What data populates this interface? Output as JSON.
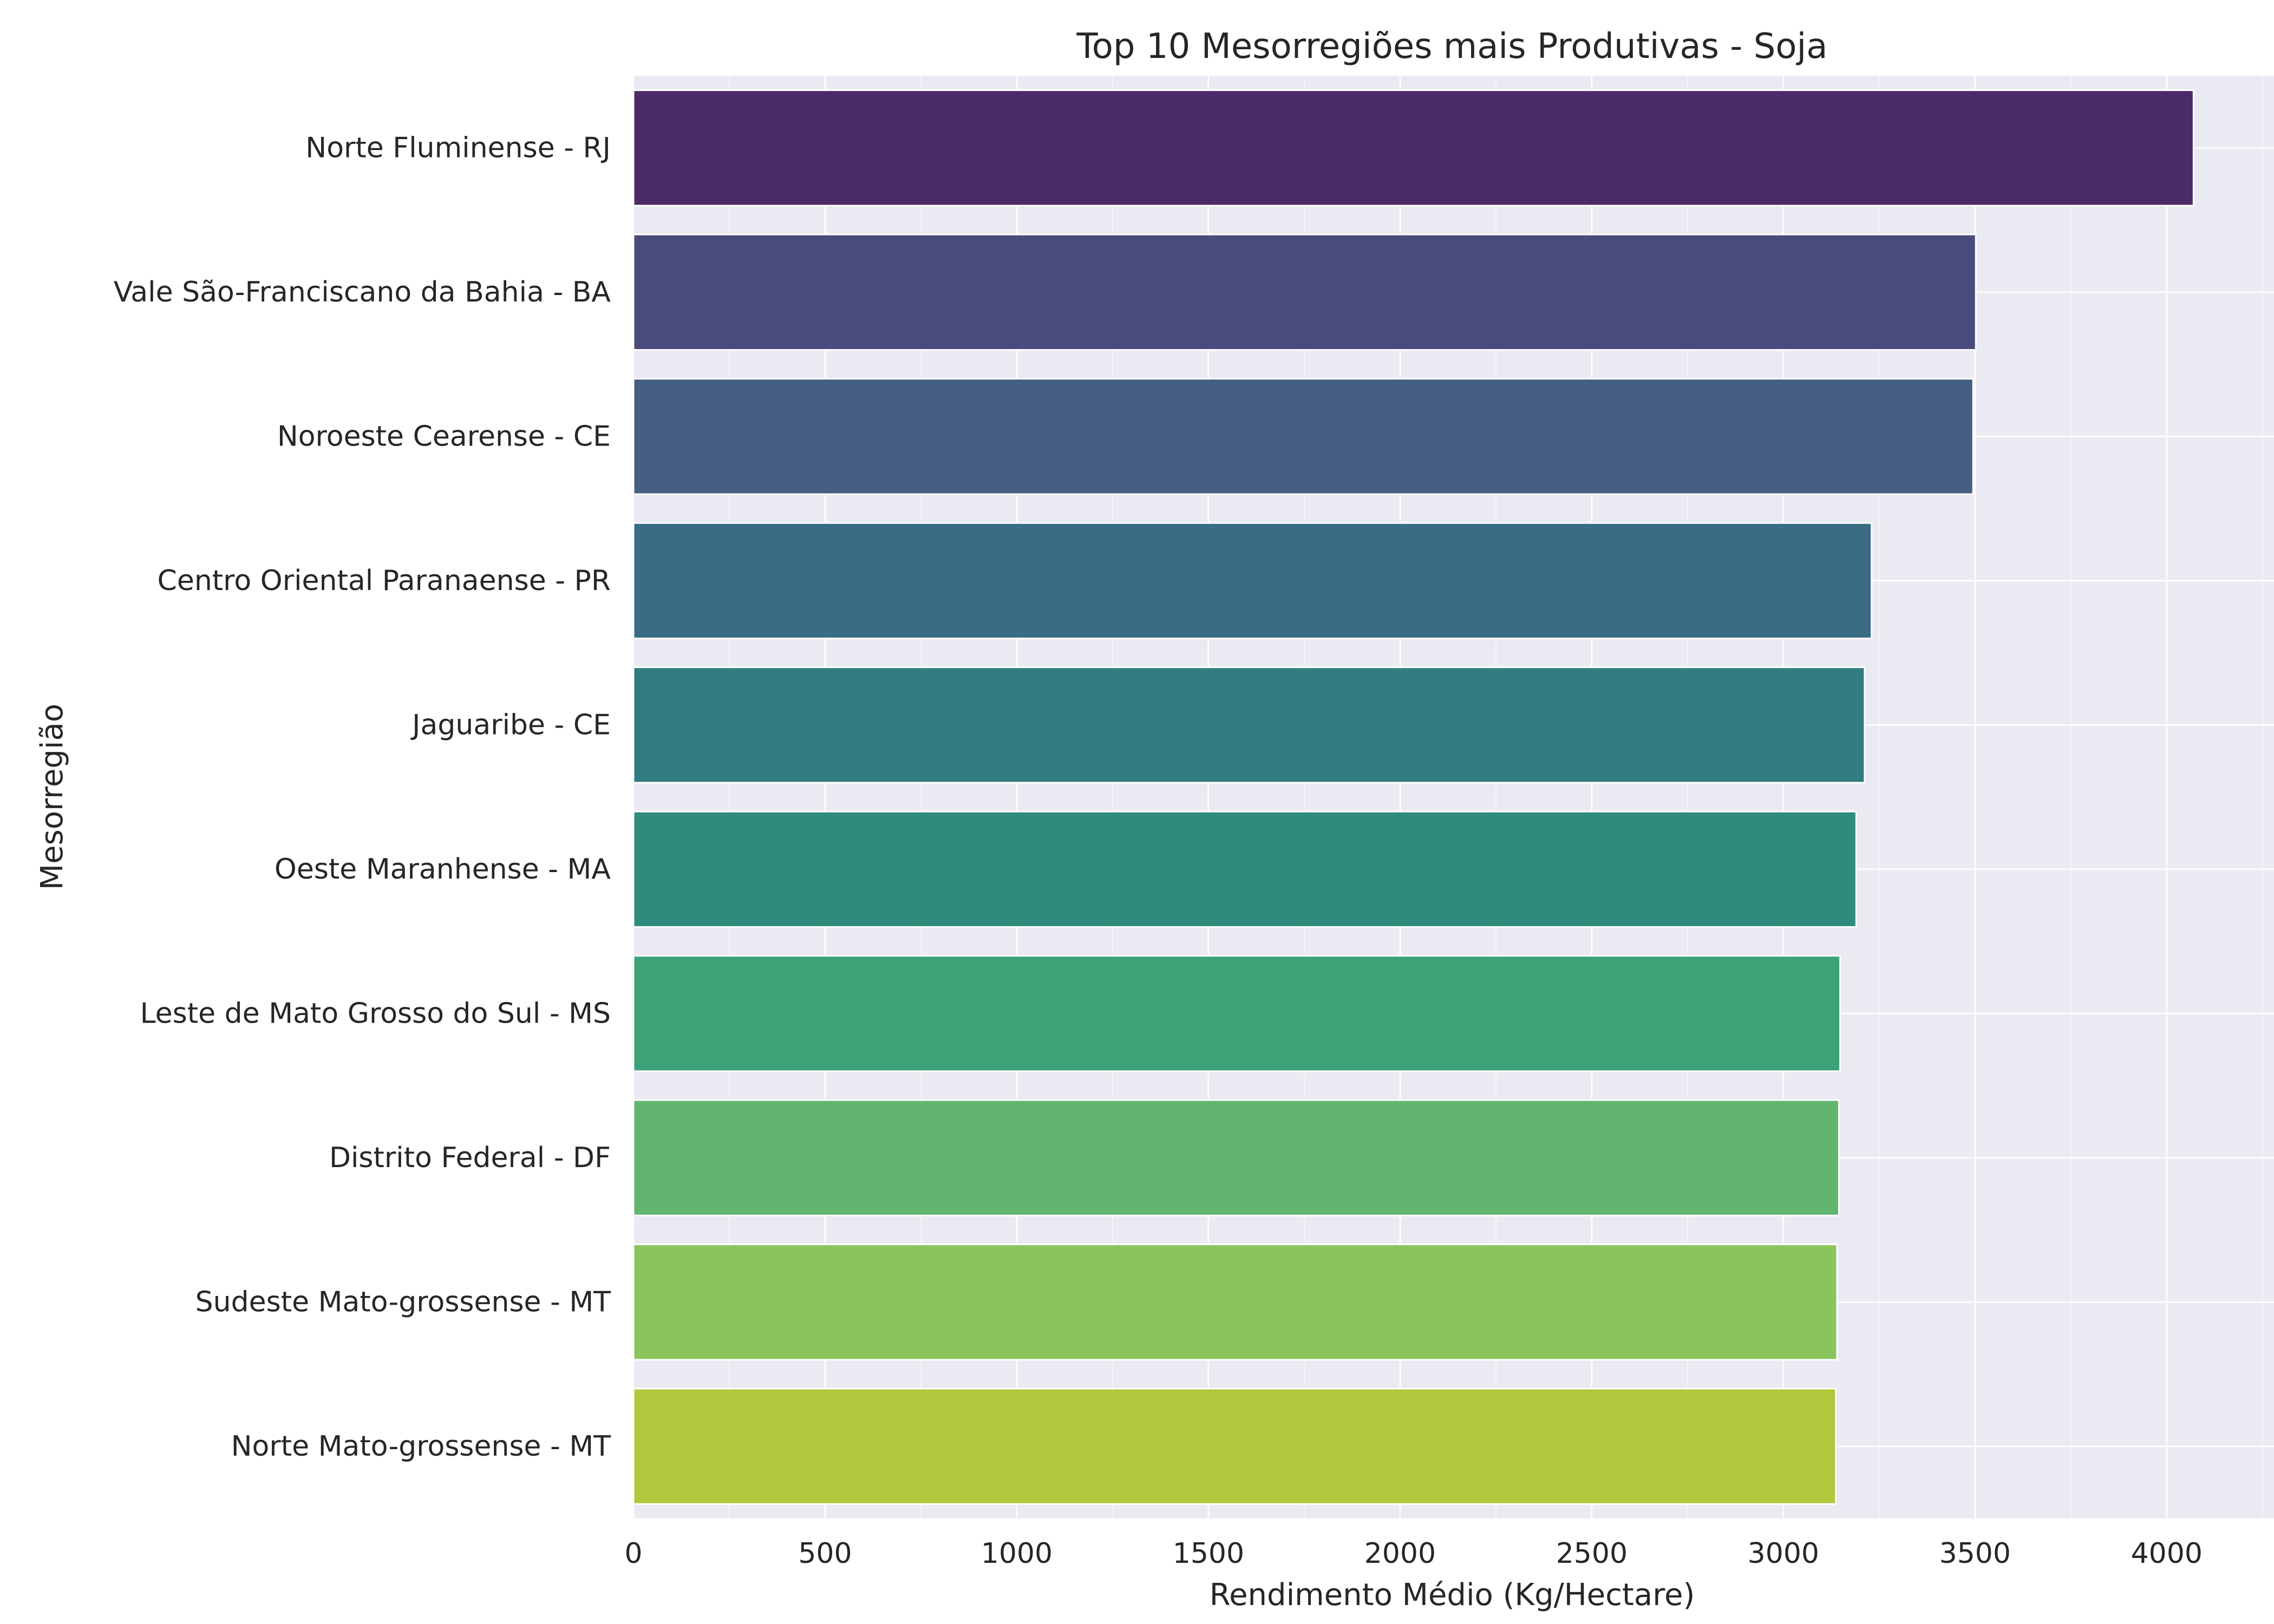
{
  "chart_data": {
    "type": "bar",
    "orientation": "horizontal",
    "title": "Top 10 Mesorregiões mais Produtivas - Soja",
    "xlabel": "Rendimento Médio (Kg/Hectare)",
    "ylabel": "Mesorregião",
    "xlim": [
      0,
      4280
    ],
    "xticks": [
      0,
      500,
      1000,
      1500,
      2000,
      2500,
      3000,
      3500,
      4000
    ],
    "grid": true,
    "categories": [
      "Norte Fluminense - RJ",
      "Vale São-Franciscano da Bahia - BA",
      "Noroeste Cearense - CE",
      "Centro Oriental Paranaense - PR",
      "Jaguaribe - CE",
      "Oeste Maranhense - MA",
      "Leste de Mato Grosso do Sul - MS",
      "Distrito Federal - DF",
      "Sudeste Mato-grossense - MT",
      "Norte Mato-grossense - MT"
    ],
    "values": [
      4070,
      3502,
      3495,
      3230,
      3212,
      3190,
      3148,
      3145,
      3140,
      3137
    ],
    "colors": [
      "#4b2a68",
      "#4b4a7c",
      "#445e84",
      "#3a6d83",
      "#317c80",
      "#2f8c7d",
      "#3da277",
      "#62b56f",
      "#8ac45c",
      "#b0c83c"
    ],
    "background": "#eaeaf2"
  }
}
